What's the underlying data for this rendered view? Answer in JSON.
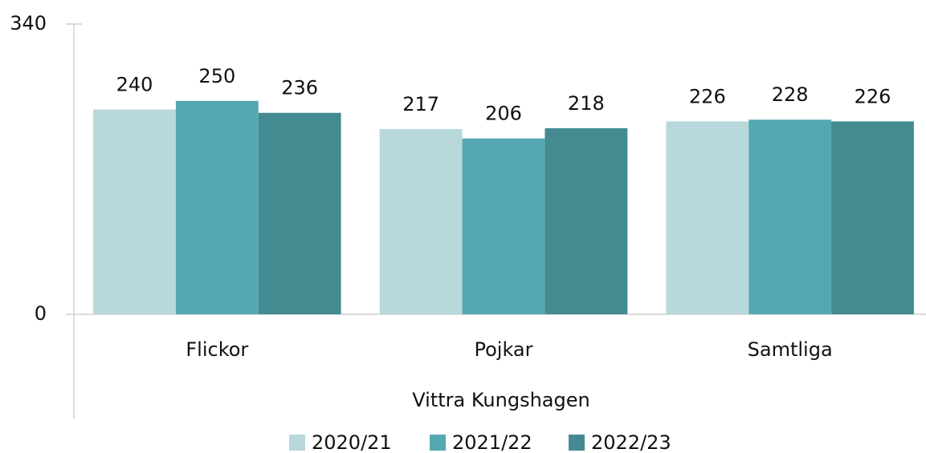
{
  "chart_data": {
    "type": "bar",
    "xlabel": "Vittra Kungshagen",
    "categories": [
      "Flickor",
      "Pojkar",
      "Samtliga"
    ],
    "series": [
      {
        "name": "2020/21",
        "color": "#b8d8dc",
        "values": [
          240,
          217,
          226
        ]
      },
      {
        "name": "2021/22",
        "color": "#55a8b2",
        "values": [
          250,
          206,
          228
        ]
      },
      {
        "name": "2022/23",
        "color": "#438b91",
        "values": [
          236,
          218,
          226
        ]
      }
    ],
    "ylim": [
      0,
      340
    ],
    "yticks": [
      0,
      340
    ],
    "legend": "bottom"
  }
}
